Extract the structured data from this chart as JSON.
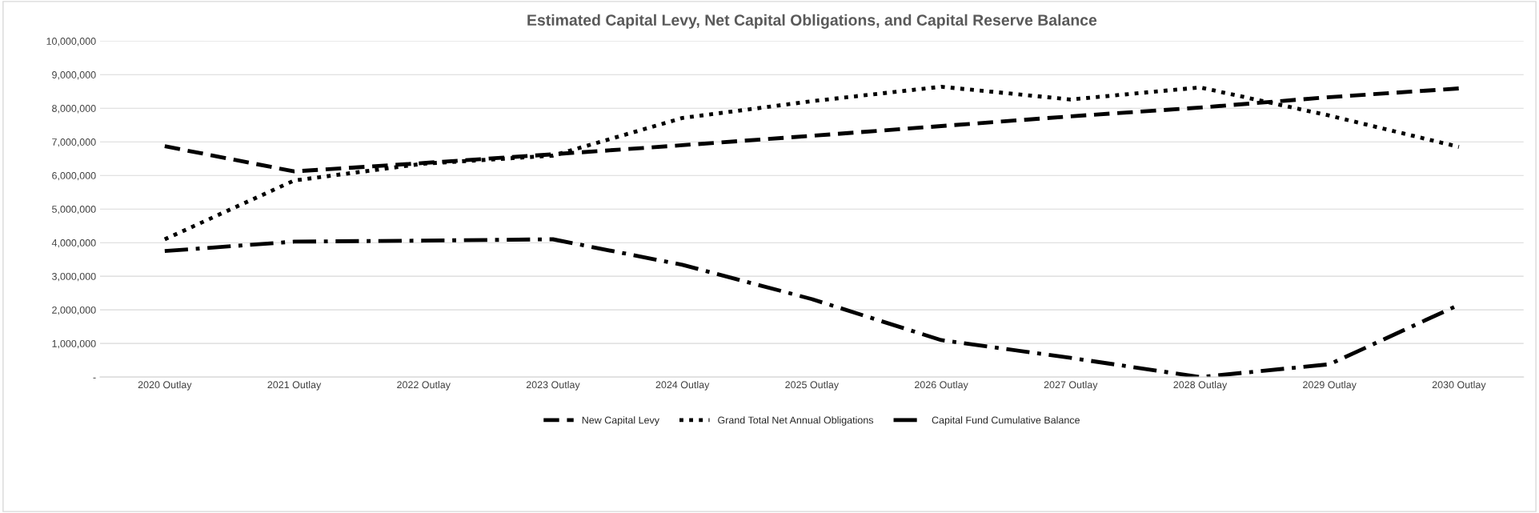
{
  "chart_data": {
    "type": "line",
    "title": "Estimated Capital Levy, Net Capital Obligations, and Capital Reserve Balance",
    "categories": [
      "2020 Outlay",
      "2021 Outlay",
      "2022 Outlay",
      "2023 Outlay",
      "2024 Outlay",
      "2025 Outlay",
      "2026 Outlay",
      "2027 Outlay",
      "2028 Outlay",
      "2029 Outlay",
      "2030 Outlay"
    ],
    "series": [
      {
        "name": "New Capital Levy",
        "color": "#000000",
        "line_style": "dashed",
        "values": [
          6870000,
          6120000,
          6370000,
          6630000,
          6900000,
          7180000,
          7470000,
          7760000,
          8020000,
          8330000,
          8590000
        ]
      },
      {
        "name": "Grand Total Net Annual Obligations",
        "color": "#000000",
        "line_style": "dotted",
        "values": [
          4100000,
          5850000,
          6350000,
          6590000,
          7710000,
          8210000,
          8640000,
          8260000,
          8620000,
          7780000,
          6850000
        ]
      },
      {
        "name": "Capital Fund Cumulative Balance",
        "color": "#000000",
        "line_style": "dashdot",
        "values": [
          3750000,
          4030000,
          4060000,
          4100000,
          3340000,
          2320000,
          1100000,
          570000,
          0,
          380000,
          2150000
        ]
      }
    ],
    "ylim": [
      0,
      10000000
    ],
    "yticks": [
      {
        "value": 0,
        "label": "-"
      },
      {
        "value": 1000000,
        "label": "1,000,000"
      },
      {
        "value": 2000000,
        "label": "2,000,000"
      },
      {
        "value": 3000000,
        "label": "3,000,000"
      },
      {
        "value": 4000000,
        "label": "4,000,000"
      },
      {
        "value": 5000000,
        "label": "5,000,000"
      },
      {
        "value": 6000000,
        "label": "6,000,000"
      },
      {
        "value": 7000000,
        "label": "7,000,000"
      },
      {
        "value": 8000000,
        "label": "8,000,000"
      },
      {
        "value": 9000000,
        "label": "9,000,000"
      },
      {
        "value": 10000000,
        "label": "10,000,000"
      }
    ],
    "grid": "y",
    "legend": "bottom",
    "marker": "none"
  }
}
